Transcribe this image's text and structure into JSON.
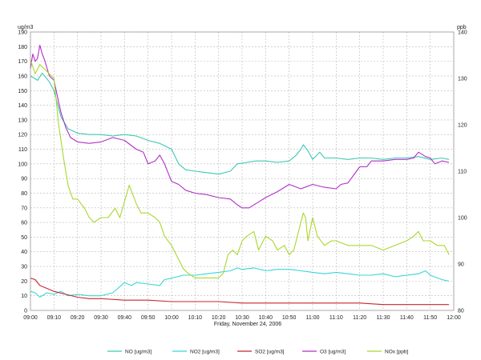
{
  "chart_data": {
    "type": "line",
    "title": "",
    "xlabel": "Friday, November 24, 2006",
    "y_left_unit": "ug/m3",
    "y_right_unit": "ppb",
    "ylim_left": [
      0,
      190
    ],
    "ylim_right": [
      80,
      140
    ],
    "left_ticks": [
      0,
      10,
      20,
      30,
      40,
      50,
      60,
      70,
      80,
      90,
      100,
      110,
      120,
      130,
      140,
      150,
      160,
      170,
      180,
      190
    ],
    "right_ticks": [
      80,
      90,
      100,
      110,
      120,
      130,
      140
    ],
    "x_ticks": [
      "09:00",
      "09:10",
      "09:20",
      "09:30",
      "09:40",
      "09:50",
      "10:00",
      "10:10",
      "10:20",
      "10:30",
      "10:40",
      "10:50",
      "11:00",
      "11:10",
      "11:20",
      "11:30",
      "11:40",
      "11:50",
      "12:00"
    ],
    "x_range_minutes": [
      0,
      180
    ],
    "grid": true,
    "legend_position": "bottom",
    "series": [
      {
        "name": "NO [ug/m3]",
        "axis": "left",
        "color": "#3cc9b4",
        "points": [
          [
            0,
            160
          ],
          [
            3,
            157
          ],
          [
            5,
            162
          ],
          [
            8,
            156
          ],
          [
            10,
            150
          ],
          [
            13,
            132
          ],
          [
            16,
            124
          ],
          [
            20,
            121
          ],
          [
            25,
            120
          ],
          [
            30,
            120
          ],
          [
            35,
            119
          ],
          [
            40,
            120
          ],
          [
            45,
            119
          ],
          [
            50,
            116
          ],
          [
            55,
            114
          ],
          [
            60,
            110
          ],
          [
            63,
            100
          ],
          [
            66,
            96
          ],
          [
            70,
            95
          ],
          [
            75,
            94
          ],
          [
            80,
            93
          ],
          [
            85,
            95
          ],
          [
            88,
            100
          ],
          [
            92,
            101
          ],
          [
            96,
            102
          ],
          [
            100,
            102
          ],
          [
            105,
            101
          ],
          [
            110,
            102
          ],
          [
            113,
            106
          ],
          [
            115,
            110
          ],
          [
            116,
            113
          ],
          [
            118,
            109
          ],
          [
            120,
            103
          ],
          [
            123,
            108
          ],
          [
            125,
            104
          ],
          [
            130,
            104
          ],
          [
            135,
            103
          ],
          [
            140,
            104
          ],
          [
            145,
            104
          ],
          [
            150,
            103
          ],
          [
            155,
            104
          ],
          [
            160,
            104
          ],
          [
            165,
            105
          ],
          [
            170,
            103
          ],
          [
            175,
            104
          ],
          [
            178,
            103
          ]
        ]
      },
      {
        "name": "NO2 [ug/m3]",
        "axis": "left",
        "color": "#38d6d6",
        "points": [
          [
            0,
            13
          ],
          [
            2,
            12
          ],
          [
            4,
            9
          ],
          [
            7,
            12
          ],
          [
            10,
            11
          ],
          [
            13,
            13
          ],
          [
            16,
            10
          ],
          [
            20,
            11
          ],
          [
            25,
            10
          ],
          [
            30,
            10
          ],
          [
            35,
            12
          ],
          [
            40,
            19
          ],
          [
            43,
            17
          ],
          [
            45,
            19
          ],
          [
            50,
            18
          ],
          [
            55,
            17
          ],
          [
            57,
            21
          ],
          [
            60,
            22
          ],
          [
            65,
            24
          ],
          [
            70,
            24
          ],
          [
            75,
            25
          ],
          [
            80,
            26
          ],
          [
            85,
            27
          ],
          [
            88,
            29
          ],
          [
            90,
            28
          ],
          [
            95,
            29
          ],
          [
            100,
            27
          ],
          [
            105,
            28
          ],
          [
            110,
            28
          ],
          [
            115,
            27
          ],
          [
            120,
            26
          ],
          [
            125,
            25
          ],
          [
            130,
            26
          ],
          [
            135,
            25
          ],
          [
            140,
            24
          ],
          [
            145,
            24
          ],
          [
            150,
            25
          ],
          [
            155,
            23
          ],
          [
            160,
            24
          ],
          [
            165,
            25
          ],
          [
            168,
            27
          ],
          [
            170,
            24
          ],
          [
            175,
            21
          ],
          [
            178,
            20
          ]
        ]
      },
      {
        "name": "SO2 [ug/m3]",
        "axis": "left",
        "color": "#c8262e",
        "points": [
          [
            0,
            22
          ],
          [
            2,
            21
          ],
          [
            4,
            17
          ],
          [
            7,
            15
          ],
          [
            10,
            13
          ],
          [
            15,
            11
          ],
          [
            20,
            9
          ],
          [
            25,
            8
          ],
          [
            30,
            8
          ],
          [
            40,
            7
          ],
          [
            50,
            7
          ],
          [
            60,
            6
          ],
          [
            70,
            6
          ],
          [
            80,
            6
          ],
          [
            90,
            5
          ],
          [
            100,
            5
          ],
          [
            110,
            5
          ],
          [
            120,
            5
          ],
          [
            130,
            5
          ],
          [
            140,
            5
          ],
          [
            150,
            4
          ],
          [
            160,
            4
          ],
          [
            170,
            4
          ],
          [
            178,
            4
          ]
        ]
      },
      {
        "name": "O3 [ug/m3]",
        "axis": "left",
        "color": "#b030c8",
        "points": [
          [
            0,
            165
          ],
          [
            1,
            175
          ],
          [
            2,
            170
          ],
          [
            3,
            172
          ],
          [
            4,
            181
          ],
          [
            5,
            175
          ],
          [
            6,
            171
          ],
          [
            8,
            160
          ],
          [
            10,
            157
          ],
          [
            12,
            142
          ],
          [
            13,
            135
          ],
          [
            15,
            125
          ],
          [
            17,
            118
          ],
          [
            20,
            115
          ],
          [
            25,
            114
          ],
          [
            30,
            115
          ],
          [
            35,
            118
          ],
          [
            40,
            116
          ],
          [
            45,
            110
          ],
          [
            48,
            108
          ],
          [
            50,
            100
          ],
          [
            53,
            102
          ],
          [
            55,
            106
          ],
          [
            57,
            100
          ],
          [
            60,
            88
          ],
          [
            63,
            86
          ],
          [
            66,
            82
          ],
          [
            70,
            80
          ],
          [
            75,
            79
          ],
          [
            80,
            77
          ],
          [
            85,
            76
          ],
          [
            88,
            72
          ],
          [
            90,
            70
          ],
          [
            93,
            70
          ],
          [
            96,
            73
          ],
          [
            100,
            77
          ],
          [
            105,
            81
          ],
          [
            110,
            86
          ],
          [
            115,
            83
          ],
          [
            120,
            86
          ],
          [
            125,
            84
          ],
          [
            130,
            83
          ],
          [
            132,
            86
          ],
          [
            135,
            87
          ],
          [
            140,
            98
          ],
          [
            143,
            98
          ],
          [
            145,
            102
          ],
          [
            150,
            102
          ],
          [
            155,
            103
          ],
          [
            160,
            103
          ],
          [
            163,
            104
          ],
          [
            165,
            108
          ],
          [
            168,
            105
          ],
          [
            170,
            104
          ],
          [
            172,
            100
          ],
          [
            175,
            102
          ],
          [
            178,
            101
          ]
        ]
      },
      {
        "name": "NOx [ppb]",
        "axis": "right",
        "color": "#a8d82c",
        "points": [
          [
            0,
            134
          ],
          [
            2,
            131
          ],
          [
            4,
            133
          ],
          [
            6,
            132
          ],
          [
            8,
            131
          ],
          [
            10,
            130
          ],
          [
            12,
            120
          ],
          [
            14,
            113
          ],
          [
            16,
            107
          ],
          [
            18,
            104
          ],
          [
            20,
            104
          ],
          [
            23,
            102
          ],
          [
            25,
            100
          ],
          [
            27,
            99
          ],
          [
            30,
            100
          ],
          [
            33,
            100
          ],
          [
            36,
            102
          ],
          [
            38,
            100
          ],
          [
            42,
            107
          ],
          [
            45,
            103
          ],
          [
            47,
            101
          ],
          [
            50,
            101
          ],
          [
            53,
            100
          ],
          [
            55,
            99
          ],
          [
            57,
            96
          ],
          [
            60,
            94
          ],
          [
            63,
            91
          ],
          [
            65,
            89
          ],
          [
            67,
            88
          ],
          [
            70,
            87
          ],
          [
            75,
            87
          ],
          [
            80,
            87
          ],
          [
            82,
            88
          ],
          [
            84,
            92
          ],
          [
            86,
            93
          ],
          [
            88,
            92
          ],
          [
            90,
            95
          ],
          [
            92,
            96
          ],
          [
            95,
            97
          ],
          [
            97,
            93
          ],
          [
            100,
            96
          ],
          [
            103,
            95
          ],
          [
            105,
            93
          ],
          [
            108,
            94
          ],
          [
            110,
            92
          ],
          [
            112,
            93
          ],
          [
            115,
            99
          ],
          [
            116,
            101
          ],
          [
            117,
            100
          ],
          [
            118,
            95
          ],
          [
            120,
            100
          ],
          [
            122,
            96
          ],
          [
            125,
            94
          ],
          [
            128,
            95
          ],
          [
            130,
            95
          ],
          [
            135,
            94
          ],
          [
            140,
            94
          ],
          [
            145,
            94
          ],
          [
            150,
            93
          ],
          [
            155,
            94
          ],
          [
            160,
            95
          ],
          [
            163,
            96
          ],
          [
            165,
            97
          ],
          [
            167,
            95
          ],
          [
            170,
            95
          ],
          [
            173,
            94
          ],
          [
            176,
            94
          ],
          [
            178,
            92
          ]
        ]
      }
    ]
  }
}
